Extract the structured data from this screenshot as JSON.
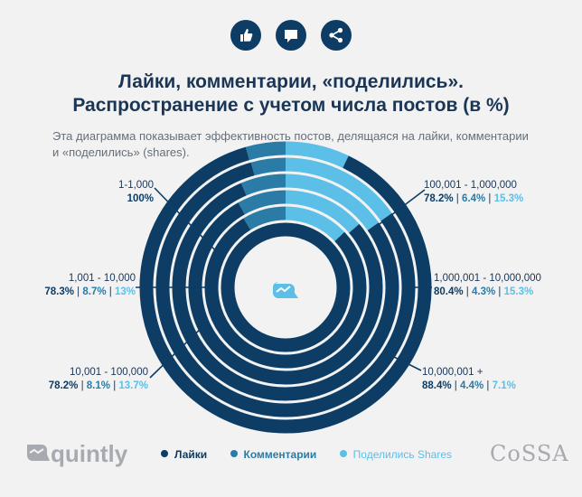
{
  "title_line1": "Лайки, комментарии, «поделились».",
  "title_line2": "Распространение с учетом числа постов (в %)",
  "subtitle_line1": "Эта диаграмма показывает эффективность постов, делящаяся на лайки, комментарии",
  "subtitle_line2": "и «поделились» (shares).",
  "icons": [
    "thumbs-up-icon",
    "comment-icon",
    "share-icon"
  ],
  "colors": {
    "likes": "#0d3c64",
    "comments": "#2a7ba5",
    "shares": "#5bbfe8",
    "gap": "#f2f2f3"
  },
  "chart_data": {
    "type": "pie",
    "subtype": "concentric-rings",
    "series_names": [
      "Лайки",
      "Комментарии",
      "Поделились Shares"
    ],
    "rings": [
      {
        "range": "1-1,000",
        "likes": 100,
        "comments": 0,
        "shares": 0,
        "label": "100%"
      },
      {
        "range": "1,001 - 10,000",
        "likes": 78.3,
        "comments": 8.7,
        "shares": 13,
        "likes_label": "78.3%",
        "comments_label": "8.7%",
        "shares_label": "13%"
      },
      {
        "range": "10,001 - 100,000",
        "likes": 78.2,
        "comments": 8.1,
        "shares": 13.7,
        "likes_label": "78.2%",
        "comments_label": "8.1%",
        "shares_label": "13.7%"
      },
      {
        "range": "100,001 - 1,000,000",
        "likes": 78.2,
        "comments": 6.4,
        "shares": 15.3,
        "likes_label": "78.2%",
        "comments_label": "6.4%",
        "shares_label": "15.3%"
      },
      {
        "range": "1,000,001 - 10,000,000",
        "likes": 80.4,
        "comments": 4.3,
        "shares": 15.3,
        "likes_label": "80.4%",
        "comments_label": "4.3%",
        "shares_label": "15.3%"
      },
      {
        "range": "10,000,001 +",
        "likes": 88.4,
        "comments": 4.4,
        "shares": 7.1,
        "likes_label": "88.4%",
        "comments_label": "4.4%",
        "shares_label": "7.1%"
      }
    ]
  },
  "legend": {
    "likes": "Лайки",
    "comments": "Комментарии",
    "shares": "Поделились Shares"
  },
  "footer": {
    "brand_left": "quintly",
    "brand_right": "CoSSA"
  }
}
